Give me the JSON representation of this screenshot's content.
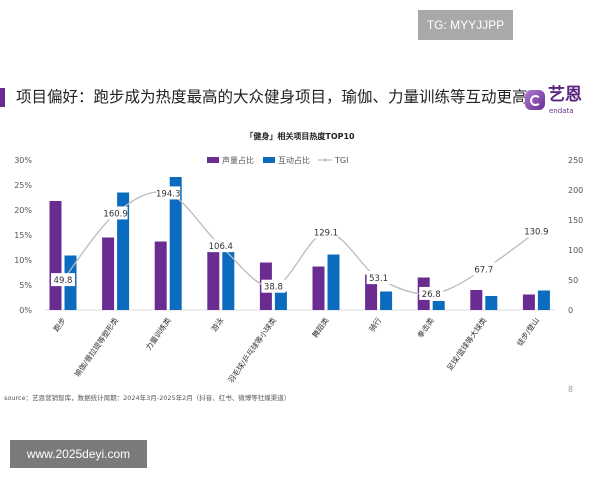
{
  "watermark_top": "TG: MYYJJPP",
  "watermark_bottom": "www.2025deyi.com",
  "header": {
    "title": "项目偏好：跑步成为热度最高的大众健身项目，瑜伽、力量训练等互动更高",
    "logo_text": "艺恩",
    "logo_sub": "endata"
  },
  "footer": {
    "source": "source：艺恩营销智库，数据统计周期：2024年3月-2025年2月（抖音、红书、微博等社媒渠道）",
    "page_number": "8"
  },
  "chart_data": {
    "type": "bar",
    "title": "「健身」相关项目热度TOP10",
    "categories": [
      "跑步",
      "瑜伽/普拉提等塑形类",
      "力量训练类",
      "游泳",
      "羽毛球/乒乓球等小球类",
      "舞蹈类",
      "骑行",
      "拳击类",
      "足球/篮球等大球类",
      "徒步/登山"
    ],
    "series": [
      {
        "name": "声量占比",
        "type": "bar",
        "axis": "left",
        "color": "#6a2c91",
        "values": [
          21.8,
          14.5,
          13.7,
          11.6,
          9.5,
          8.7,
          7.1,
          6.5,
          4.0,
          3.1
        ]
      },
      {
        "name": "互动占比",
        "type": "bar",
        "axis": "left",
        "color": "#0b6cbf",
        "values": [
          10.9,
          23.5,
          26.6,
          11.6,
          3.7,
          11.1,
          3.7,
          1.8,
          2.8,
          3.9
        ]
      },
      {
        "name": "TGI",
        "type": "line",
        "axis": "right",
        "color": "#bbbbbb",
        "values": [
          49.8,
          160.9,
          194.3,
          106.4,
          38.8,
          129.1,
          53.1,
          26.8,
          67.7,
          130.9
        ],
        "labels": [
          "49.8",
          "160.9",
          "194.3",
          "106.4",
          "38.8",
          "129.1",
          "53.1",
          "26.8",
          "67.7",
          "130.9"
        ]
      }
    ],
    "left_axis": {
      "ylim": [
        0,
        30
      ],
      "ticks": [
        "0%",
        "5%",
        "10%",
        "15%",
        "20%",
        "25%",
        "30%"
      ]
    },
    "right_axis": {
      "ylim": [
        0,
        250
      ],
      "ticks": [
        "0",
        "50",
        "100",
        "150",
        "200",
        "250"
      ]
    },
    "legend": "top-right",
    "grid": false
  }
}
